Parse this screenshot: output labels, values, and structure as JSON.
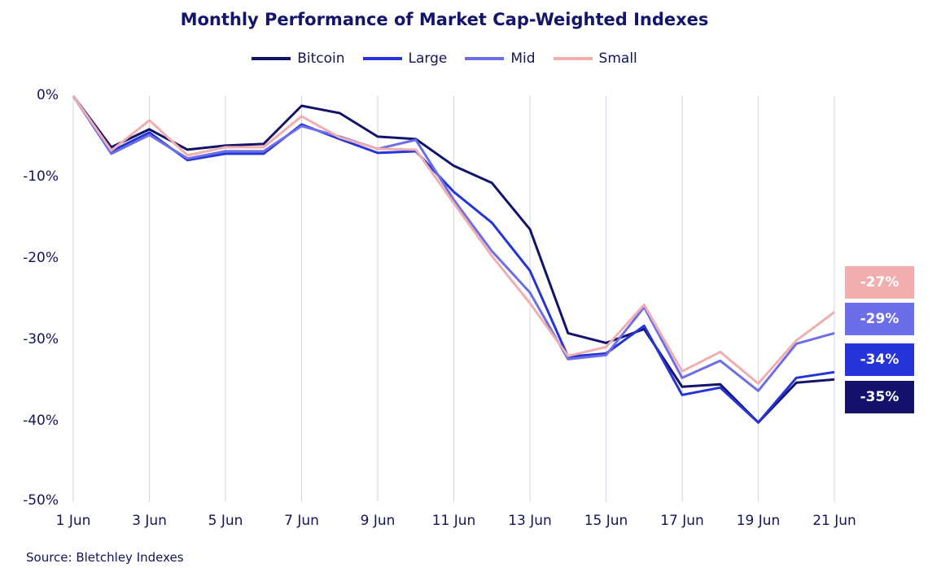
{
  "chart_data": {
    "type": "line",
    "title": "Monthly Performance of Market Cap-Weighted Indexes",
    "xlabel": "",
    "ylabel": "",
    "ylim": [
      -50,
      0
    ],
    "yticks": [
      0,
      -10,
      -20,
      -30,
      -40,
      -50
    ],
    "ytick_labels": [
      "0%",
      "-10%",
      "-20%",
      "-30%",
      "-40%",
      "-50%"
    ],
    "x": [
      1,
      2,
      3,
      4,
      5,
      6,
      7,
      8,
      9,
      10,
      11,
      12,
      13,
      14,
      15,
      16,
      17,
      18,
      19,
      20,
      21
    ],
    "xtick_values": [
      1,
      3,
      5,
      7,
      9,
      11,
      13,
      15,
      17,
      19,
      21
    ],
    "xtick_labels": [
      "1 Jun",
      "3 Jun",
      "5 Jun",
      "7 Jun",
      "9 Jun",
      "11 Jun",
      "13 Jun",
      "15 Jun",
      "17 Jun",
      "19 Jun",
      "21 Jun"
    ],
    "grid": "vertical",
    "legend_position": "top-center",
    "series": [
      {
        "name": "Bitcoin",
        "color": "#13136b",
        "values": [
          0,
          -6.3,
          -4.1,
          -6.6,
          -6.1,
          -5.9,
          -1.2,
          -2.1,
          -5.0,
          -5.3,
          -8.6,
          -10.7,
          -16.4,
          -29.2,
          -30.4,
          -28.7,
          -35.8,
          -35.5,
          -40.2,
          -35.3,
          -34.9
        ],
        "end_label": "-35%"
      },
      {
        "name": "Large",
        "color": "#2534d8",
        "values": [
          0,
          -6.8,
          -4.5,
          -7.9,
          -7.1,
          -7.1,
          -3.5,
          -5.3,
          -7.0,
          -6.8,
          -11.8,
          -15.6,
          -21.5,
          -32.1,
          -31.7,
          -28.3,
          -36.8,
          -35.9,
          -40.2,
          -34.7,
          -34.0
        ],
        "end_label": "-34%"
      },
      {
        "name": "Mid",
        "color": "#6b6ee8",
        "values": [
          0,
          -7.1,
          -4.8,
          -7.7,
          -6.8,
          -6.8,
          -3.7,
          -5.0,
          -6.5,
          -5.4,
          -12.8,
          -19.1,
          -24.2,
          -32.4,
          -31.9,
          -26.0,
          -34.7,
          -32.6,
          -36.3,
          -30.5,
          -29.2
        ],
        "end_label": "-29%"
      },
      {
        "name": "Small",
        "color": "#f0aeae",
        "values": [
          0,
          -6.7,
          -3.0,
          -7.3,
          -6.3,
          -6.3,
          -2.5,
          -5.1,
          -6.5,
          -6.6,
          -13.2,
          -19.7,
          -25.5,
          -32.0,
          -30.9,
          -25.7,
          -33.9,
          -31.5,
          -35.4,
          -30.1,
          -26.6
        ],
        "end_label": "-27%"
      }
    ],
    "source": "Source: Bletchley Indexes"
  }
}
